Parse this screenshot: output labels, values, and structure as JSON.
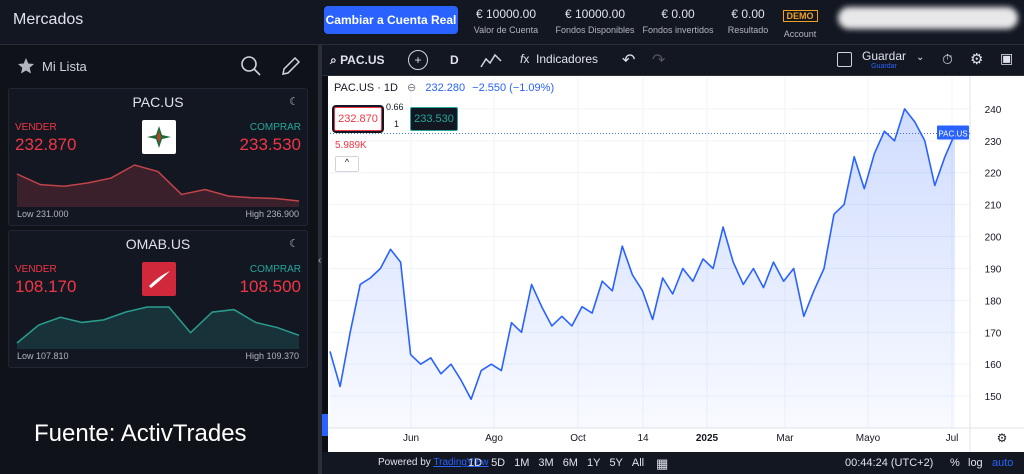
{
  "header": {
    "title": "Mercados",
    "button": "Cambiar a Cuenta Real",
    "stats": [
      {
        "value": "€ 10000.00",
        "label": "Valor de Cuenta"
      },
      {
        "value": "€ 10000.00",
        "label": "Fondos Disponibles"
      },
      {
        "value": "€ 0.00",
        "label": "Fondos invertidos"
      },
      {
        "value": "€ 0.00",
        "label": "Resultado"
      }
    ],
    "demo": "DEMO",
    "account": "Account"
  },
  "watchlist": {
    "title": "Mi Lista",
    "items": [
      {
        "symbol": "PAC.US",
        "sell_label": "VENDER",
        "sell": "232.870",
        "buy_label": "COMPRAR",
        "buy": "233.530",
        "low": "Low 231.000",
        "high": "High 236.900",
        "sparkline": [
          234.5,
          233.2,
          233.0,
          233.4,
          234.0,
          235.6,
          234.8,
          232.0,
          232.6,
          231.8,
          231.6,
          231.5,
          231.2
        ]
      },
      {
        "symbol": "OMAB.US",
        "sell_label": "VENDER",
        "sell": "108.170",
        "buy_label": "COMPRAR",
        "buy": "108.500",
        "low": "Low 107.810",
        "high": "High 109.370",
        "sparkline": [
          107.9,
          108.6,
          108.9,
          108.7,
          108.8,
          109.1,
          109.3,
          109.3,
          108.3,
          109.1,
          109.2,
          108.7,
          108.5,
          108.2
        ]
      }
    ]
  },
  "source": "Fuente: ActivTrades",
  "toolbar": {
    "symbol": "PAC.US",
    "interval": "D",
    "indicators": "Indicadores",
    "save": "Guardar",
    "save_sub": "Guardar"
  },
  "chart": {
    "legend": {
      "title": "PAC.US · 1D",
      "close": "232.280",
      "change": "−2.550 (−1.09%)",
      "spread": "0.66",
      "lot": "1",
      "sell": "232.870",
      "buy": "233.530",
      "volume": "5.989K"
    },
    "price_label": "PAC.US",
    "values": [
      164,
      153,
      170,
      185,
      187,
      190,
      196,
      192,
      163,
      160,
      162,
      157,
      160,
      155,
      149,
      158,
      160,
      158,
      173,
      170,
      185,
      178,
      172,
      175,
      172,
      178,
      176,
      186,
      183,
      197,
      188,
      183,
      174,
      187,
      182,
      190,
      186,
      193,
      190,
      203,
      192,
      185,
      190,
      184,
      192,
      186,
      190,
      175,
      183,
      190,
      207,
      210,
      225,
      215,
      226,
      233,
      230,
      240,
      236,
      230,
      216,
      225,
      232.28
    ],
    "color": "#2962ff",
    "ylim": [
      140,
      250
    ],
    "yticks": [
      150,
      160,
      170,
      180,
      190,
      200,
      210,
      220,
      230,
      240
    ],
    "xlabels": [
      "Jun",
      "Ago",
      "Oct",
      "14",
      "2025",
      "Mar",
      "Mayo",
      "Jul"
    ],
    "grid": true
  },
  "footer": {
    "powered": "Powered by",
    "brand": "TradingView",
    "ranges": [
      "1D",
      "5D",
      "1M",
      "3M",
      "6M",
      "1Y",
      "5Y",
      "All"
    ],
    "time": "00:44:24 (UTC+2)",
    "percent": "%",
    "log": "log",
    "auto": "auto"
  }
}
